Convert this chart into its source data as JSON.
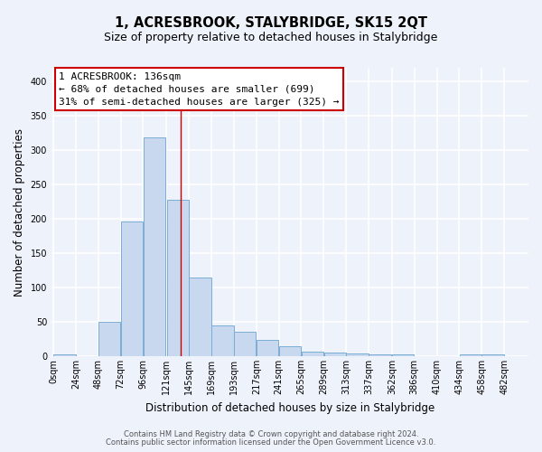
{
  "title": "1, ACRESBROOK, STALYBRIDGE, SK15 2QT",
  "subtitle": "Size of property relative to detached houses in Stalybridge",
  "xlabel": "Distribution of detached houses by size in Stalybridge",
  "ylabel": "Number of detached properties",
  "bar_left_edges": [
    0,
    24,
    48,
    72,
    96,
    121,
    145,
    169,
    193,
    217,
    241,
    265,
    289,
    313,
    337,
    362,
    386,
    410,
    434,
    458
  ],
  "bar_widths": [
    24,
    24,
    24,
    24,
    24,
    24,
    24,
    24,
    24,
    24,
    24,
    24,
    24,
    24,
    24,
    24,
    24,
    24,
    24,
    24
  ],
  "bar_heights": [
    2,
    0,
    50,
    196,
    318,
    228,
    114,
    45,
    35,
    24,
    15,
    7,
    5,
    4,
    3,
    3,
    0,
    0,
    2,
    2
  ],
  "bar_color": "#c8d8ee",
  "bar_edge_color": "#7badd4",
  "ylim": [
    0,
    420
  ],
  "yticks": [
    0,
    50,
    100,
    150,
    200,
    250,
    300,
    350,
    400
  ],
  "xtick_labels": [
    "0sqm",
    "24sqm",
    "48sqm",
    "72sqm",
    "96sqm",
    "121sqm",
    "145sqm",
    "169sqm",
    "193sqm",
    "217sqm",
    "241sqm",
    "265sqm",
    "289sqm",
    "313sqm",
    "337sqm",
    "362sqm",
    "386sqm",
    "410sqm",
    "434sqm",
    "458sqm",
    "482sqm"
  ],
  "vline_x": 136,
  "vline_color": "#cc0000",
  "annotation_line1": "1 ACRESBROOK: 136sqm",
  "annotation_line2": "← 68% of detached houses are smaller (699)",
  "annotation_line3": "31% of semi-detached houses are larger (325) →",
  "annotation_box_color": "#ffffff",
  "annotation_box_edge_color": "#cc0000",
  "footer_line1": "Contains HM Land Registry data © Crown copyright and database right 2024.",
  "footer_line2": "Contains public sector information licensed under the Open Government Licence v3.0.",
  "bg_color": "#eef2fb",
  "plot_bg_color": "#eef2fb",
  "grid_color": "#ffffff",
  "title_fontsize": 10.5,
  "subtitle_fontsize": 9,
  "axis_label_fontsize": 8.5,
  "tick_fontsize": 7,
  "annotation_fontsize": 8,
  "footer_fontsize": 6
}
